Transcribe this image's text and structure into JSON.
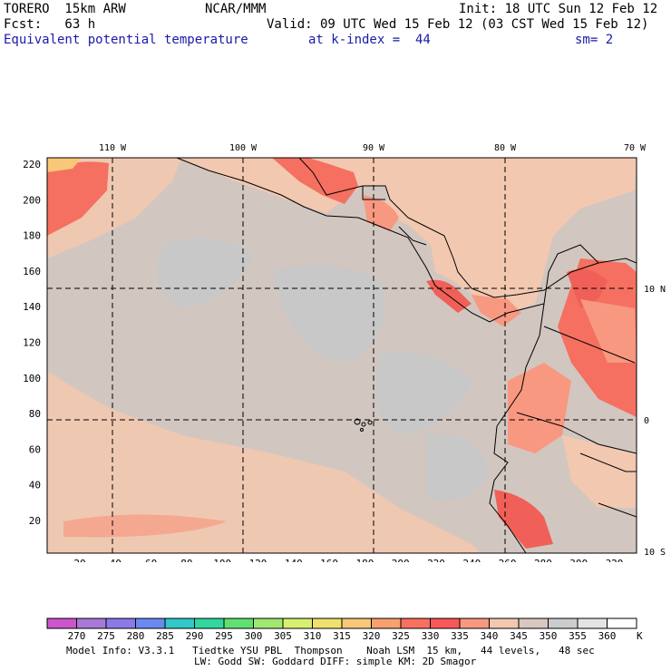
{
  "header": {
    "model": "TORERO  15km ARW",
    "center": "NCAR/MMM",
    "init": "Init: 18 UTC Sun 12 Feb 12",
    "fcst": "Fcst:   63 h",
    "valid": "Valid: 09 UTC Wed 15 Feb 12 (03 CST Wed 15 Feb 12)",
    "field": "Equivalent potential temperature",
    "level": "at k-index =  44",
    "smooth": "sm= 2"
  },
  "map": {
    "lon_labels": [
      "110 W",
      "100 W",
      "90 W",
      "80 W",
      "70 W"
    ],
    "lat_labels": [
      "10 N",
      "0",
      "10 S"
    ],
    "y_grid_labels": [
      "220",
      "200",
      "180",
      "160",
      "140",
      "120",
      "100",
      "80",
      "60",
      "40",
      "20"
    ],
    "x_grid_labels": [
      "20",
      "40",
      "60",
      "80",
      "100",
      "120",
      "140",
      "160",
      "180",
      "200",
      "220",
      "240",
      "260",
      "280",
      "300",
      "320"
    ]
  },
  "colorbar": {
    "labels": [
      "270",
      "275",
      "280",
      "285",
      "290",
      "295",
      "300",
      "305",
      "310",
      "315",
      "320",
      "325",
      "330",
      "335",
      "340",
      "345",
      "350",
      "355",
      "360"
    ],
    "unit": "K",
    "colors": [
      "#cc55cc",
      "#a878d8",
      "#8a7ae8",
      "#6a8af0",
      "#30c8c8",
      "#30d8a0",
      "#60e070",
      "#a0e870",
      "#d8f070",
      "#f0e070",
      "#f8c878",
      "#f8a070",
      "#f87060",
      "#f85858",
      "#f89880",
      "#f2c8b0",
      "#d8c8c0",
      "#cccccc",
      "#e4e4e4",
      "#ffffff"
    ]
  },
  "footer": {
    "line1": "Model Info: V3.3.1   Tiedtke YSU PBL  Thompson    Noah LSM  15 km,   44 levels,   48 sec",
    "line2": "LW: Godd SW: Goddard DIFF: simple KM: 2D Smagor"
  }
}
